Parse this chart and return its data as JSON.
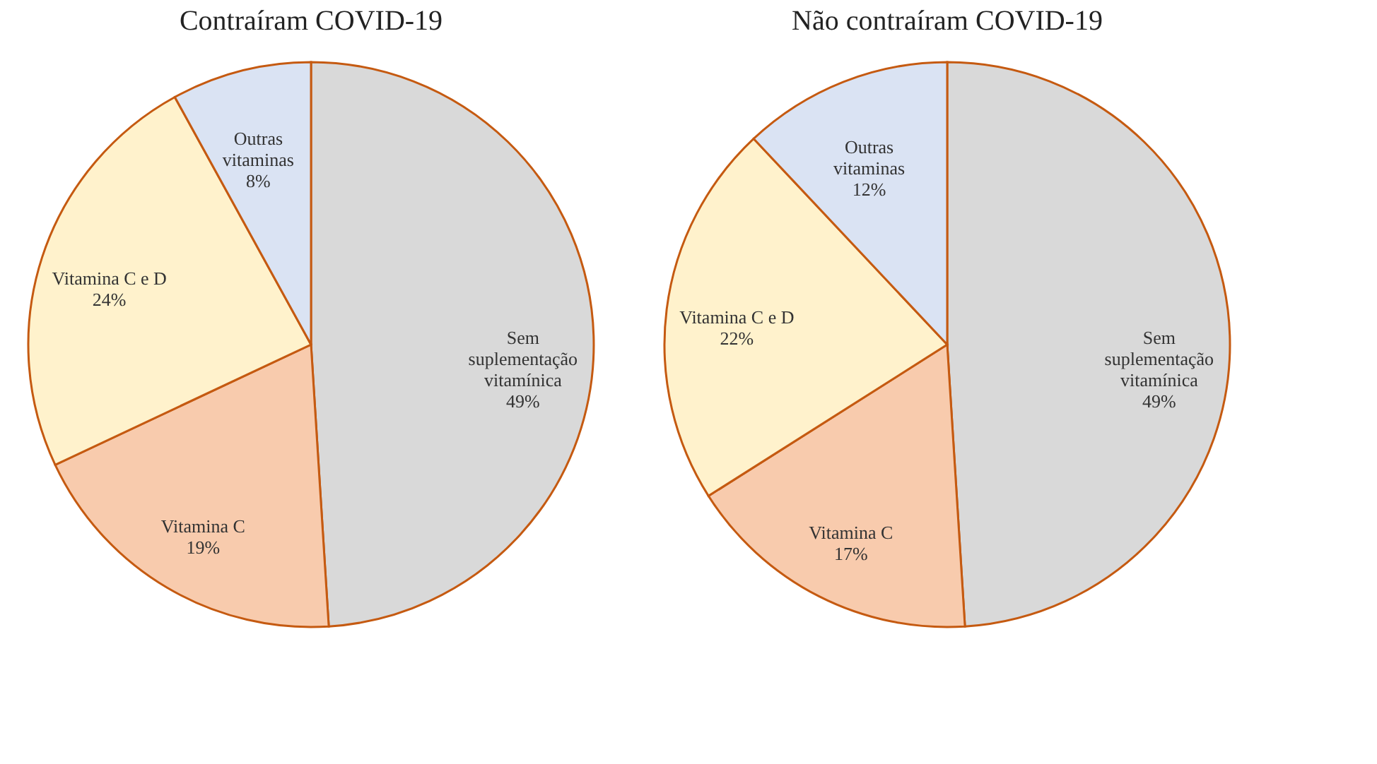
{
  "chart_data": [
    {
      "type": "pie",
      "title": "Contraíram COVID-19",
      "categories": [
        "Sem\nsuplementação\nvitamínica",
        "Vitamina C",
        "Vitamina C e D",
        "Outras\nvitaminas"
      ],
      "values": [
        49,
        19,
        24,
        8
      ],
      "colors": [
        "#d9d9d9",
        "#f8cbad",
        "#fff2cc",
        "#dae3f3"
      ],
      "value_labels": [
        "49%",
        "19%",
        "24%",
        "8%"
      ]
    },
    {
      "type": "pie",
      "title": "Não contraíram COVID-19",
      "categories": [
        "Sem\nsuplementação\nvitamínica",
        "Vitamina C",
        "Vitamina C e D",
        "Outras\nvitaminas"
      ],
      "values": [
        49,
        17,
        22,
        12
      ],
      "colors": [
        "#d9d9d9",
        "#f8cbad",
        "#fff2cc",
        "#dae3f3"
      ],
      "value_labels": [
        "49%",
        "17%",
        "22%",
        "12%"
      ]
    }
  ]
}
